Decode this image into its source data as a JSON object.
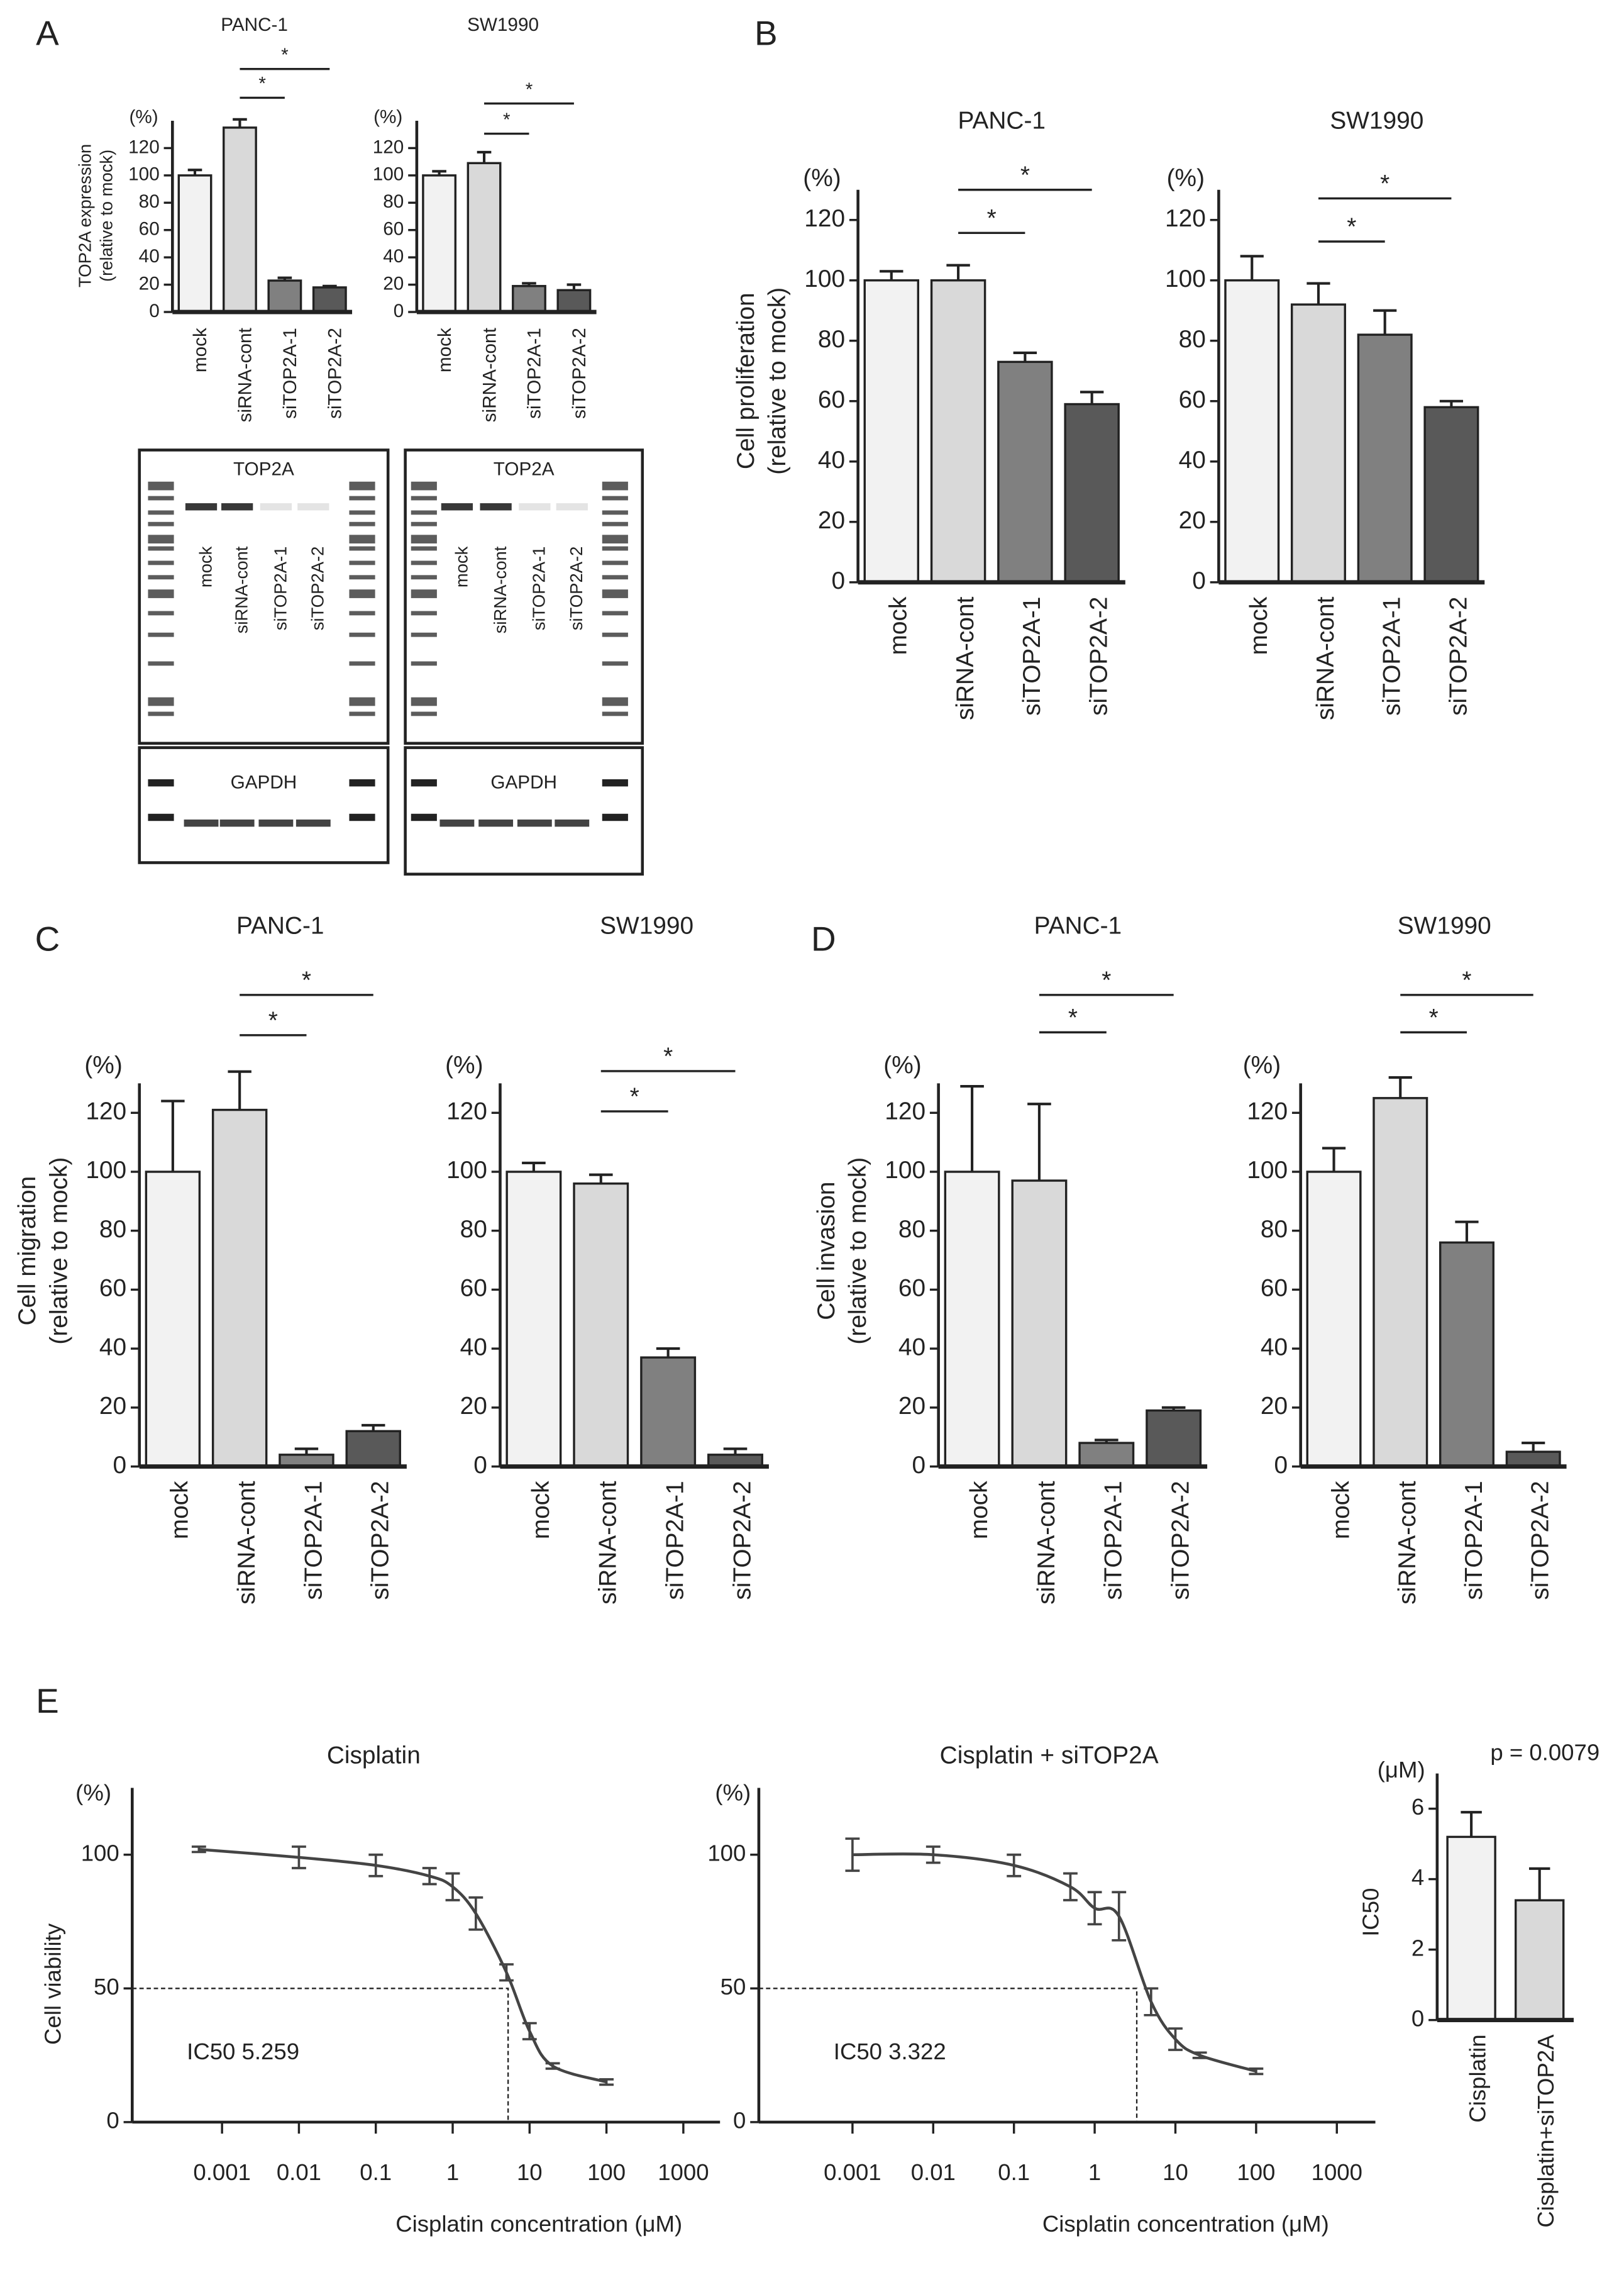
{
  "panels": [
    "A",
    "B",
    "C",
    "D",
    "E"
  ],
  "blots": [
    {
      "top_label": "TOP2A",
      "bottom_label": "GAPDH",
      "lanes": [
        "mock",
        "siRNA-cont",
        "siTOP2A-1",
        "siTOP2A-2"
      ]
    },
    {
      "top_label": "TOP2A",
      "bottom_label": "GAPDH",
      "lanes": [
        "mock",
        "siRNA-cont",
        "siTOP2A-1",
        "siTOP2A-2"
      ]
    }
  ],
  "chart_data": [
    {
      "type": "bar",
      "title": "PANC-1",
      "yunit": "(%)",
      "ylabel": [
        "TOP2A expression",
        "(relative to mock)"
      ],
      "categories": [
        "mock",
        "siRNA-cont",
        "siTOP2A-1",
        "siTOP2A-2"
      ],
      "values": [
        100,
        135,
        23,
        18
      ],
      "errors": [
        4,
        6,
        2,
        1
      ],
      "colors": [
        "#f2f2f2",
        "#d9d9d9",
        "#808080",
        "#595959"
      ],
      "ylim": [
        0,
        140
      ],
      "yticks": [
        0,
        20,
        40,
        60,
        80,
        100,
        120
      ],
      "significance": [
        {
          "between": [
            1,
            2
          ],
          "label": "*"
        },
        {
          "between": [
            1,
            3
          ],
          "label": "*"
        }
      ]
    },
    {
      "type": "bar",
      "title": "SW1990",
      "yunit": "(%)",
      "categories": [
        "mock",
        "siRNA-cont",
        "siTOP2A-1",
        "siTOP2A-2"
      ],
      "values": [
        100,
        109,
        19,
        16
      ],
      "errors": [
        3,
        8,
        2,
        4
      ],
      "colors": [
        "#f2f2f2",
        "#d9d9d9",
        "#808080",
        "#595959"
      ],
      "ylim": [
        0,
        140
      ],
      "yticks": [
        0,
        20,
        40,
        60,
        80,
        100,
        120
      ],
      "significance": [
        {
          "between": [
            1,
            2
          ],
          "label": "*"
        },
        {
          "between": [
            1,
            3
          ],
          "label": "*"
        }
      ]
    },
    {
      "type": "bar",
      "title": "PANC-1",
      "yunit": "(%)",
      "ylabel": [
        "Cell proliferation",
        "(relative to mock)"
      ],
      "categories": [
        "mock",
        "siRNA-cont",
        "siTOP2A-1",
        "siTOP2A-2"
      ],
      "values": [
        100,
        100,
        73,
        59
      ],
      "errors": [
        3,
        5,
        3,
        4
      ],
      "colors": [
        "#f2f2f2",
        "#d9d9d9",
        "#808080",
        "#595959"
      ],
      "ylim": [
        0,
        130
      ],
      "yticks": [
        0,
        20,
        40,
        60,
        80,
        100,
        120
      ],
      "significance": [
        {
          "between": [
            1,
            2
          ],
          "label": "*"
        },
        {
          "between": [
            1,
            3
          ],
          "label": "*"
        }
      ]
    },
    {
      "type": "bar",
      "title": "SW1990",
      "yunit": "(%)",
      "categories": [
        "mock",
        "siRNA-cont",
        "siTOP2A-1",
        "siTOP2A-2"
      ],
      "values": [
        100,
        92,
        82,
        58
      ],
      "errors": [
        8,
        7,
        8,
        2
      ],
      "colors": [
        "#f2f2f2",
        "#d9d9d9",
        "#808080",
        "#595959"
      ],
      "ylim": [
        0,
        130
      ],
      "yticks": [
        0,
        20,
        40,
        60,
        80,
        100,
        120
      ],
      "significance": [
        {
          "between": [
            1,
            2
          ],
          "label": "*"
        },
        {
          "between": [
            1,
            3
          ],
          "label": "*"
        }
      ]
    },
    {
      "type": "bar",
      "title": "PANC-1",
      "yunit": "(%)",
      "ylabel": [
        "Cell migration",
        "(relative to mock)"
      ],
      "categories": [
        "mock",
        "siRNA-cont",
        "siTOP2A-1",
        "siTOP2A-2"
      ],
      "values": [
        100,
        121,
        4,
        12
      ],
      "errors": [
        24,
        13,
        2,
        2
      ],
      "colors": [
        "#f2f2f2",
        "#d9d9d9",
        "#808080",
        "#595959"
      ],
      "ylim": [
        0,
        130
      ],
      "yticks": [
        0,
        20,
        40,
        60,
        80,
        100,
        120
      ],
      "significance": [
        {
          "between": [
            1,
            2
          ],
          "label": "*"
        },
        {
          "between": [
            1,
            3
          ],
          "label": "*"
        }
      ]
    },
    {
      "type": "bar",
      "title": "SW1990",
      "yunit": "(%)",
      "categories": [
        "mock",
        "siRNA-cont",
        "siTOP2A-1",
        "siTOP2A-2"
      ],
      "values": [
        100,
        96,
        37,
        4
      ],
      "errors": [
        3,
        3,
        3,
        2
      ],
      "colors": [
        "#f2f2f2",
        "#d9d9d9",
        "#808080",
        "#595959"
      ],
      "ylim": [
        0,
        130
      ],
      "yticks": [
        0,
        20,
        40,
        60,
        80,
        100,
        120
      ],
      "significance": [
        {
          "between": [
            1,
            2
          ],
          "label": "*"
        },
        {
          "between": [
            1,
            3
          ],
          "label": "*"
        }
      ]
    },
    {
      "type": "bar",
      "title": "PANC-1",
      "yunit": "(%)",
      "ylabel": [
        "Cell invasion",
        "(relative to mock)"
      ],
      "categories": [
        "mock",
        "siRNA-cont",
        "siTOP2A-1",
        "siTOP2A-2"
      ],
      "values": [
        100,
        97,
        8,
        19
      ],
      "errors": [
        29,
        26,
        1,
        1
      ],
      "colors": [
        "#f2f2f2",
        "#d9d9d9",
        "#808080",
        "#595959"
      ],
      "ylim": [
        0,
        130
      ],
      "yticks": [
        0,
        20,
        40,
        60,
        80,
        100,
        120
      ],
      "significance": [
        {
          "between": [
            1,
            2
          ],
          "label": "*"
        },
        {
          "between": [
            1,
            3
          ],
          "label": "*"
        }
      ]
    },
    {
      "type": "bar",
      "title": "SW1990",
      "yunit": "(%)",
      "categories": [
        "mock",
        "siRNA-cont",
        "siTOP2A-1",
        "siTOP2A-2"
      ],
      "values": [
        100,
        125,
        76,
        5
      ],
      "errors": [
        8,
        7,
        7,
        3
      ],
      "colors": [
        "#f2f2f2",
        "#d9d9d9",
        "#808080",
        "#595959"
      ],
      "ylim": [
        0,
        130
      ],
      "yticks": [
        0,
        20,
        40,
        60,
        80,
        100,
        120
      ],
      "significance": [
        {
          "between": [
            1,
            2
          ],
          "label": "*"
        },
        {
          "between": [
            1,
            3
          ],
          "label": "*"
        }
      ]
    },
    {
      "type": "dose_response",
      "title": "Cisplatin",
      "yunit": "(%)",
      "ylabel": [
        "Cell viability"
      ],
      "xlabel": "Cisplatin concentration (μM)",
      "x": [
        0.0005,
        0.01,
        0.1,
        0.5,
        1,
        2,
        5,
        10,
        20,
        100
      ],
      "values": [
        102,
        99,
        96,
        92,
        88,
        78,
        56,
        34,
        21,
        15
      ],
      "errors": [
        1,
        4,
        4,
        3,
        5,
        6,
        3,
        3,
        1,
        1
      ],
      "color": "#444444",
      "xscale": "log",
      "xlim": [
        0.0001,
        3000
      ],
      "xticks": [
        0.001,
        0.01,
        0.1,
        1,
        10,
        100,
        1000
      ],
      "ylim": [
        0,
        125
      ],
      "yticks": [
        0,
        50,
        100
      ],
      "annotation": "IC50 5.259",
      "ic50": 5.259,
      "ic50_level": 50
    },
    {
      "type": "dose_response",
      "title": "Cisplatin + siTOP2A",
      "yunit": "(%)",
      "xlabel": "Cisplatin concentration (μM)",
      "x": [
        0.001,
        0.01,
        0.1,
        0.5,
        1,
        2,
        5,
        10,
        20,
        100
      ],
      "values": [
        100,
        100,
        96,
        88,
        80,
        77,
        45,
        31,
        25,
        19
      ],
      "errors": [
        6,
        3,
        4,
        5,
        6,
        9,
        5,
        4,
        1,
        1
      ],
      "color": "#444444",
      "xscale": "log",
      "xlim": [
        0.0001,
        3000
      ],
      "xticks": [
        0.001,
        0.01,
        0.1,
        1,
        10,
        100,
        1000
      ],
      "ylim": [
        0,
        125
      ],
      "yticks": [
        0,
        50,
        100
      ],
      "annotation": "IC50 3.322",
      "ic50": 3.322,
      "ic50_level": 50
    },
    {
      "type": "bar",
      "yunit": "(μM)",
      "ylabel": [
        "IC50"
      ],
      "annotation": "p = 0.0079",
      "categories": [
        "Cisplatin",
        "Cisplatin+siTOP2A"
      ],
      "values": [
        5.2,
        3.4
      ],
      "errors": [
        0.7,
        0.9
      ],
      "colors": [
        "#f2f2f2",
        "#d9d9d9"
      ],
      "ylim": [
        0,
        7
      ],
      "yticks": [
        0,
        2,
        4,
        6
      ]
    }
  ]
}
